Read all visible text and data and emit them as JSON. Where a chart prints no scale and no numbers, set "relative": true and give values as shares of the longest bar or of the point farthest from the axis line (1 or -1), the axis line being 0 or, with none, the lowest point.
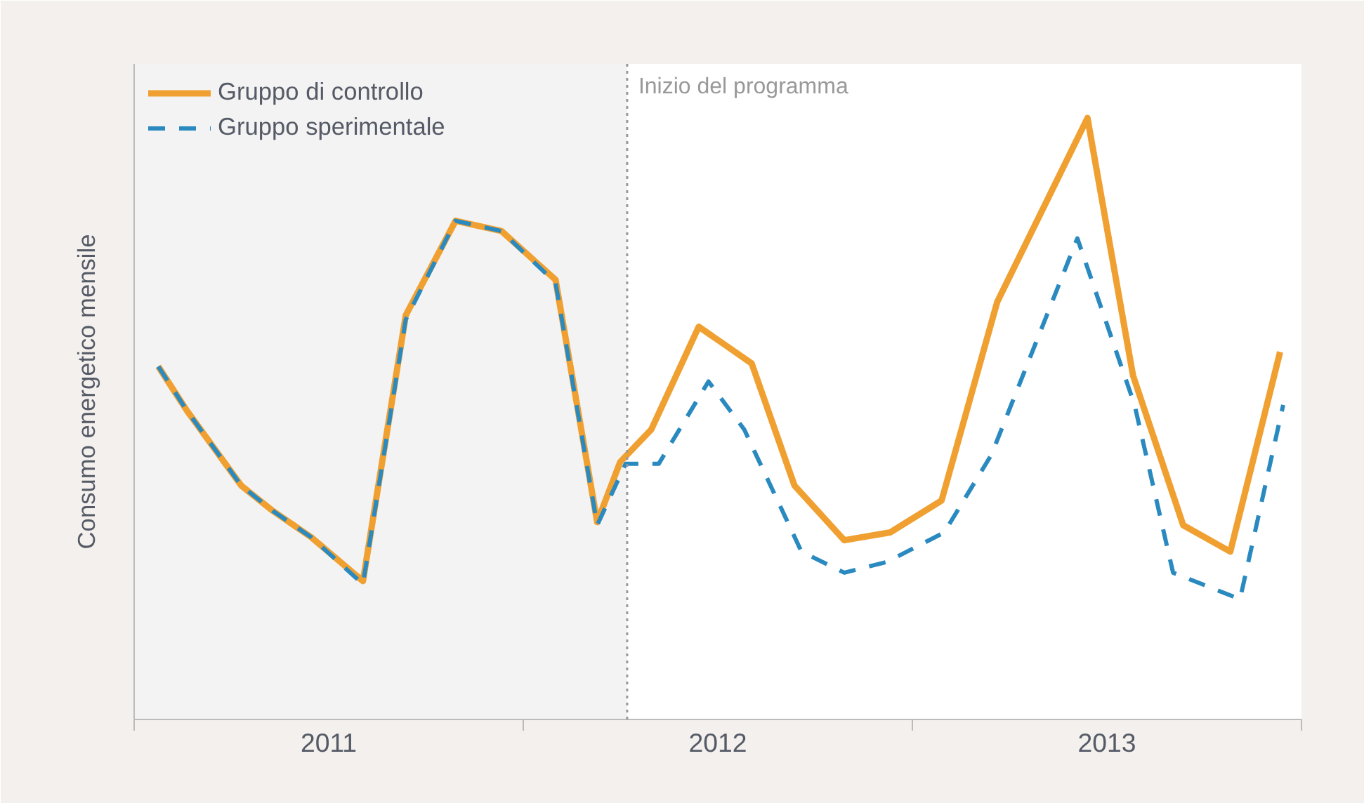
{
  "chart_data": {
    "type": "line",
    "relative": true,
    "ylabel": "Consumo energetico mensile",
    "xlim": [
      2011,
      2014
    ],
    "xticks": [
      {
        "value": 2011,
        "label": null
      },
      {
        "value": 2012,
        "label": null
      },
      {
        "value": 2013,
        "label": null
      },
      {
        "value": 2014,
        "label": null
      },
      {
        "value": 2011.5,
        "label": "2011"
      },
      {
        "value": 2012.5,
        "label": "2012"
      },
      {
        "value": 2013.5,
        "label": "2013"
      }
    ],
    "legend": "top left",
    "grid": false,
    "tick_labels": "x",
    "series": [
      {
        "name": "Gruppo di controllo",
        "color": "#f0a030",
        "line_style": "solid",
        "x": [
          2011.062,
          2011.136,
          2011.275,
          2011.356,
          2011.455,
          2011.588,
          2011.698,
          2011.826,
          2011.944,
          2012.083,
          2012.19,
          2012.249,
          2012.329,
          2012.451,
          2012.587,
          2012.697,
          2012.825,
          2012.943,
          2013.075,
          2013.218,
          2013.45,
          2013.567,
          2013.696,
          2013.817,
          2013.945
        ],
        "values": [
          0.587,
          0.513,
          0.389,
          0.347,
          0.303,
          0.23,
          0.672,
          0.829,
          0.812,
          0.731,
          0.328,
          0.428,
          0.482,
          0.653,
          0.592,
          0.389,
          0.298,
          0.311,
          0.364,
          0.694,
          1.0,
          0.572,
          0.323,
          0.279,
          0.611
        ]
      },
      {
        "name": "Gruppo sperimentale",
        "color": "#2a8ac0",
        "line_style": "dashed",
        "x": [
          2011.062,
          2011.136,
          2011.275,
          2011.356,
          2011.455,
          2011.588,
          2011.698,
          2011.826,
          2011.944,
          2012.083,
          2012.19,
          2012.263,
          2012.348,
          2012.476,
          2012.568,
          2012.715,
          2012.825,
          2012.935,
          2013.082,
          2013.203,
          2013.424,
          2013.571,
          2013.67,
          2013.842,
          2013.953
        ],
        "values": [
          0.587,
          0.513,
          0.389,
          0.347,
          0.303,
          0.225,
          0.665,
          0.829,
          0.812,
          0.726,
          0.323,
          0.425,
          0.425,
          0.562,
          0.482,
          0.279,
          0.244,
          0.262,
          0.311,
          0.44,
          0.8,
          0.523,
          0.244,
          0.2,
          0.523
        ]
      }
    ],
    "bands": [
      {
        "axis": "x",
        "from": 2011,
        "to": 2012.267,
        "color": "#f3f3f3"
      }
    ],
    "ref_lines": [
      {
        "axis": "x",
        "value": 2012.267,
        "label": "Inizio del programma",
        "color": "#999999",
        "line_style": "dotted"
      }
    ]
  }
}
